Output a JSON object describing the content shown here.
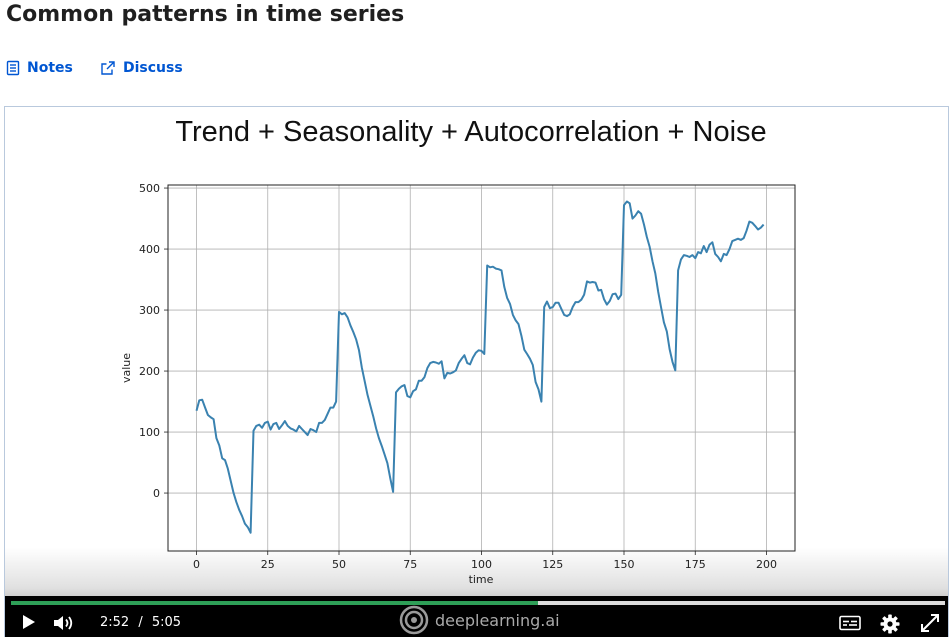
{
  "page": {
    "title": "Common patterns in time series",
    "actions": {
      "notes_label": "Notes",
      "discuss_label": "Discuss"
    },
    "accent_color": "#0056d2"
  },
  "video": {
    "current_time": "2:52",
    "time_separator": "/",
    "duration": "5:05",
    "progress_fraction": 0.564,
    "progress_color": "#2e9f57",
    "brand_text": "deeplearning.ai",
    "icons": [
      "play-icon",
      "volume-icon",
      "captions-icon",
      "gear-icon",
      "fullscreen-icon"
    ]
  },
  "chart_data": {
    "type": "line",
    "title": "Trend + Seasonality + Autocorrelation + Noise",
    "xlabel": "time",
    "ylabel": "value",
    "xlim": [
      -10,
      210
    ],
    "ylim": [
      -95,
      505
    ],
    "xticks": [
      0,
      25,
      50,
      75,
      100,
      125,
      150,
      175,
      200
    ],
    "yticks": [
      0,
      100,
      200,
      300,
      400,
      500
    ],
    "grid": true,
    "line_color": "#3a82b0",
    "series": [
      {
        "x": [
          0,
          1,
          2,
          3,
          4,
          5,
          6,
          7,
          8,
          9,
          10,
          11,
          12,
          13,
          14,
          15,
          16,
          17,
          18,
          19,
          20,
          21,
          22,
          23,
          24,
          25,
          26,
          27,
          28,
          29,
          30,
          31,
          32,
          33,
          34,
          35,
          36,
          37,
          38,
          39,
          40,
          41,
          42,
          43,
          44,
          45,
          46,
          47,
          48,
          49,
          50,
          51,
          52,
          53,
          54,
          55,
          56,
          57,
          58,
          59,
          60,
          61,
          62,
          63,
          64,
          65,
          66,
          67,
          68,
          69,
          70,
          71,
          72,
          73,
          74,
          75,
          76,
          77,
          78,
          79,
          80,
          81,
          82,
          83,
          84,
          85,
          86,
          87,
          88,
          89,
          90,
          91,
          92,
          93,
          94,
          95,
          96,
          97,
          98,
          99,
          100,
          101,
          102,
          103,
          104,
          105,
          106,
          107,
          108,
          109,
          110,
          111,
          112,
          113,
          114,
          115,
          116,
          117,
          118,
          119,
          120,
          121,
          122,
          123,
          124,
          125,
          126,
          127,
          128,
          129,
          130,
          131,
          132,
          133,
          134,
          135,
          136,
          137,
          138,
          139,
          140,
          141,
          142,
          143,
          144,
          145,
          146,
          147,
          148,
          149,
          150,
          151,
          152,
          153,
          154,
          155,
          156,
          157,
          158,
          159,
          160,
          161,
          162,
          163,
          164,
          165,
          166,
          167,
          168,
          169,
          170,
          171,
          172,
          173,
          174,
          175,
          176,
          177,
          178,
          179,
          180,
          181,
          182,
          183,
          184,
          185,
          186,
          187,
          188,
          189,
          190,
          191,
          192,
          193,
          194,
          195,
          196,
          197,
          198,
          199
        ],
        "y": [
          135,
          152,
          153,
          140,
          128,
          124,
          121,
          90,
          78,
          57,
          54,
          40,
          20,
          0,
          -15,
          -28,
          -38,
          -50,
          -56,
          -65,
          102,
          110,
          112,
          107,
          115,
          117,
          104,
          113,
          115,
          105,
          111,
          118,
          110,
          106,
          104,
          101,
          110,
          105,
          100,
          95,
          105,
          103,
          100,
          115,
          115,
          120,
          130,
          140,
          140,
          150,
          297,
          293,
          295,
          288,
          275,
          264,
          252,
          234,
          206,
          184,
          161,
          143,
          126,
          106,
          90,
          77,
          63,
          49,
          24,
          2,
          165,
          171,
          175,
          177,
          159,
          157,
          167,
          170,
          184,
          184,
          190,
          205,
          213,
          215,
          214,
          212,
          216,
          188,
          197,
          196,
          198,
          201,
          213,
          220,
          226,
          213,
          211,
          222,
          230,
          234,
          233,
          228,
          373,
          370,
          371,
          368,
          367,
          365,
          338,
          320,
          310,
          292,
          283,
          277,
          258,
          235,
          228,
          220,
          210,
          182,
          170,
          150,
          305,
          314,
          303,
          305,
          312,
          312,
          302,
          292,
          290,
          293,
          305,
          313,
          313,
          317,
          325,
          347,
          345,
          346,
          345,
          332,
          333,
          318,
          309,
          315,
          326,
          327,
          318,
          325,
          472,
          478,
          475,
          450,
          455,
          462,
          458,
          440,
          420,
          404,
          380,
          360,
          330,
          305,
          280,
          265,
          236,
          215,
          201,
          365,
          383,
          390,
          389,
          387,
          390,
          385,
          395,
          393,
          405,
          395,
          407,
          411,
          392,
          387,
          380,
          392,
          390,
          400,
          413,
          415,
          417,
          415,
          418,
          430,
          445,
          443,
          438,
          432,
          435,
          440
        ]
      }
    ]
  }
}
